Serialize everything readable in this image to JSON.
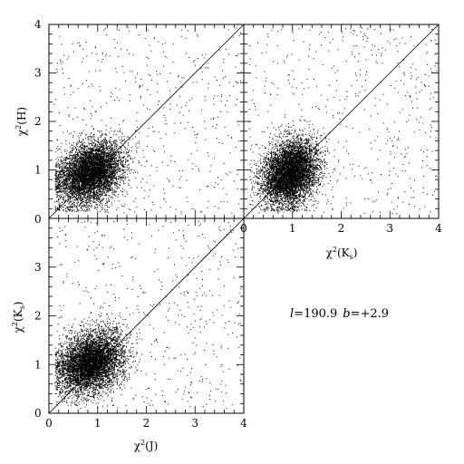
{
  "chart_data": [
    {
      "type": "scatter",
      "panel": "top-left",
      "xlabel": "",
      "ylabel_base": "χ",
      "ylabel_sup": "2",
      "ylabel_arg": "(H)",
      "xlim": [
        0,
        4
      ],
      "ylim": [
        0,
        4
      ],
      "xticks": [],
      "yticks": [
        "1",
        "2",
        "3",
        "4"
      ],
      "diagonal": "y=x",
      "cloud": {
        "center_x": 0.85,
        "center_y": 0.95,
        "spread_x": 0.33,
        "spread_y": 0.3,
        "n": 6000,
        "outliers": 500
      }
    },
    {
      "type": "scatter",
      "panel": "top-right",
      "xlabel_base": "χ",
      "xlabel_sup": "2",
      "xlabel_arg": "(K",
      "xlabel_sub": "s",
      "xlabel_close": ")",
      "ylabel": "",
      "xlim": [
        0,
        4
      ],
      "ylim": [
        0,
        4
      ],
      "xticks": [
        "0",
        "1",
        "2",
        "3",
        "4"
      ],
      "yticks": [],
      "diagonal": "y=x",
      "cloud": {
        "center_x": 0.95,
        "center_y": 0.95,
        "spread_x": 0.28,
        "spread_y": 0.32,
        "n": 6000,
        "outliers": 500
      }
    },
    {
      "type": "scatter",
      "panel": "bottom-left",
      "xlabel_base": "χ",
      "xlabel_sup": "2",
      "xlabel_arg": "(J)",
      "ylabel_base": "χ",
      "ylabel_sup": "2",
      "ylabel_arg": "(K",
      "ylabel_sub": "s",
      "ylabel_close": ")",
      "xlim": [
        0,
        4
      ],
      "ylim": [
        0,
        4
      ],
      "xticks": [
        "0",
        "1",
        "2",
        "3",
        "4"
      ],
      "yticks": [
        "0",
        "1",
        "2",
        "3"
      ],
      "diagonal": "y=x",
      "cloud": {
        "center_x": 0.85,
        "center_y": 1.05,
        "spread_x": 0.33,
        "spread_y": 0.3,
        "n": 6000,
        "outliers": 500
      }
    }
  ],
  "annotation": {
    "l_symbol": "l",
    "l_value": "=190.9",
    "b_symbol": "b",
    "b_value": "=+2.9"
  },
  "shared_top_zero_label": "0"
}
